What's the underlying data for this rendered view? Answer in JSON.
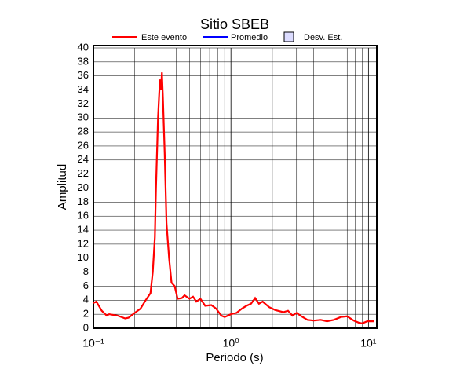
{
  "chart_data": {
    "type": "line",
    "title": "Sitio SBEB",
    "x_label": "Periodo (s)",
    "y_label": "Amplitud",
    "x_log": true,
    "grid": true,
    "xlim": [
      0.1,
      11.5
    ],
    "ylim": [
      0,
      40
    ],
    "xticks": [
      {
        "value": 0.1,
        "label": "10⁻¹"
      },
      {
        "value": 1,
        "label": "10⁰"
      },
      {
        "value": 10,
        "label": "10¹"
      }
    ],
    "yticks": [
      0,
      2,
      4,
      6,
      8,
      10,
      12,
      14,
      16,
      18,
      20,
      22,
      24,
      26,
      28,
      30,
      32,
      34,
      36,
      38,
      40
    ],
    "x": [
      0.1,
      0.105,
      0.115,
      0.125,
      0.13,
      0.15,
      0.17,
      0.18,
      0.2,
      0.22,
      0.24,
      0.26,
      0.27,
      0.28,
      0.285,
      0.295,
      0.3,
      0.305,
      0.31,
      0.315,
      0.32,
      0.33,
      0.34,
      0.355,
      0.37,
      0.39,
      0.41,
      0.44,
      0.46,
      0.5,
      0.53,
      0.56,
      0.6,
      0.65,
      0.72,
      0.78,
      0.85,
      0.9,
      1.0,
      1.1,
      1.2,
      1.3,
      1.4,
      1.5,
      1.6,
      1.7,
      1.9,
      2.1,
      2.4,
      2.6,
      2.8,
      3.0,
      3.2,
      3.6,
      4.0,
      4.5,
      5.0,
      5.6,
      6.3,
      7.0,
      7.8,
      8.5,
      9.0,
      9.8,
      11
    ],
    "series": [
      {
        "name": "Este evento",
        "color": "#ff0000",
        "values": [
          3.6,
          3.8,
          2.5,
          1.8,
          2,
          1.8,
          1.4,
          1.5,
          2.2,
          2.8,
          4.0,
          5,
          8,
          13,
          20,
          30,
          33,
          35.5,
          34,
          36.5,
          33,
          25,
          15,
          10,
          6.5,
          6,
          4.2,
          4.3,
          4.7,
          4.2,
          4.5,
          3.8,
          4.2,
          3.2,
          3.3,
          2.8,
          1.8,
          1.6,
          2,
          2.2,
          2.8,
          3.2,
          3.5,
          4.3,
          3.5,
          3.8,
          3,
          2.6,
          2.3,
          2.5,
          1.8,
          2.2,
          1.8,
          1.2,
          1.1,
          1.2,
          1.0,
          1.2,
          1.6,
          1.7,
          1.1,
          0.8,
          0.7,
          1.0,
          1.0
        ]
      }
    ],
    "legend": [
      {
        "name": "Promedio",
        "color": "#0000ff",
        "kind": "line"
      },
      {
        "name": "Desv. Est.",
        "color": "#dcdcff",
        "kind": "box"
      }
    ]
  }
}
